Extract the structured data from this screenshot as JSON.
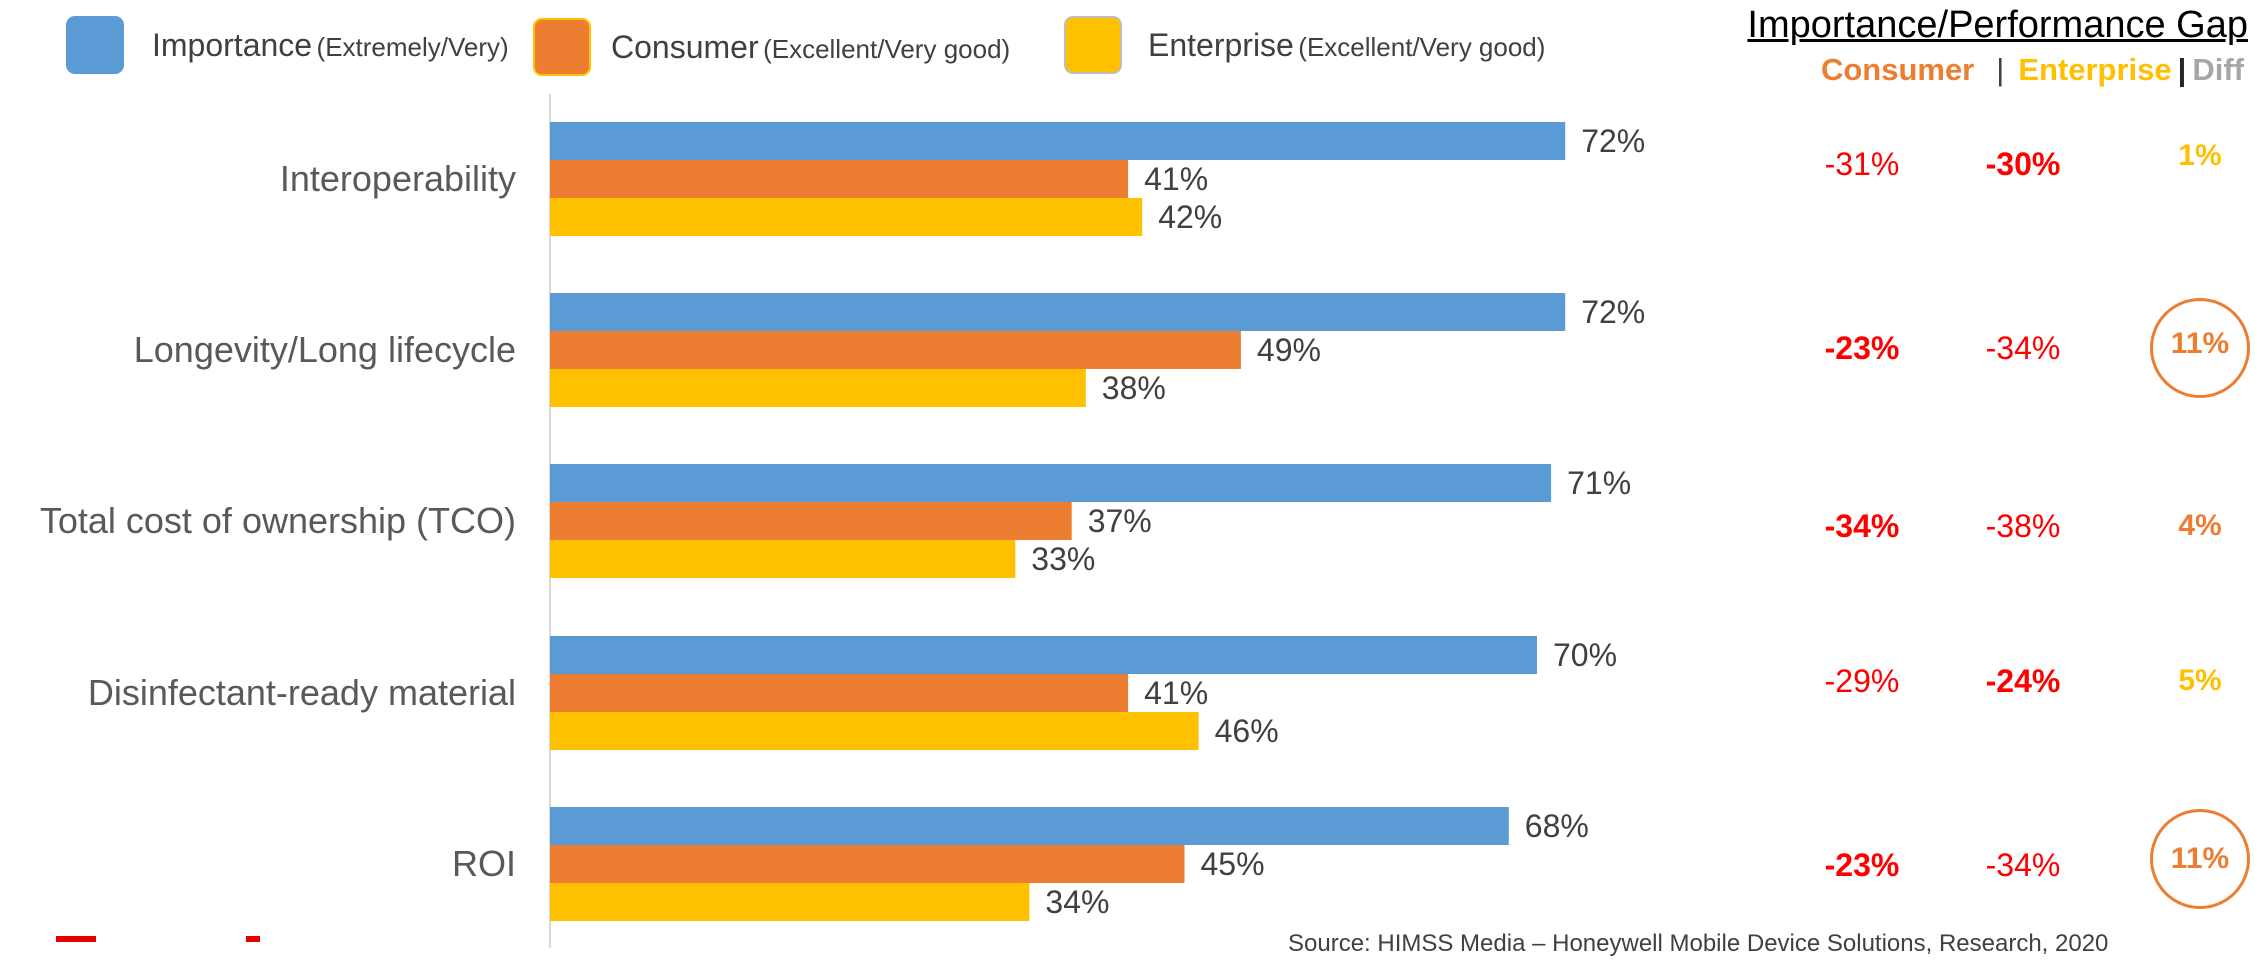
{
  "legend": {
    "importance": {
      "main": "Importance",
      "sub": "(Extremely/Very)"
    },
    "consumer": {
      "main": "Consumer",
      "sub": "(Excellent/Very good)"
    },
    "enterprise": {
      "main": "Enterprise",
      "sub": "(Excellent/Very good)"
    }
  },
  "colors": {
    "importance": "#5B9BD5",
    "consumer": "#ED7D31",
    "enterprise": "#FFC000",
    "gap_negative": "#FF0000",
    "axis": "#D9D9D9"
  },
  "gap_panel": {
    "title": "Importance/Performance Gap",
    "consumer_label": "Consumer",
    "separator_thin": "|",
    "enterprise_label": "Enterprise",
    "separator_thick": "|",
    "diff_label": "Diff",
    "rows": [
      {
        "consumer": "-31%",
        "consumer_bold": false,
        "enterprise": "-30%",
        "enterprise_bold": true,
        "diff": "1%",
        "diff_color": "#FFC000",
        "circled": false
      },
      {
        "consumer": "-23%",
        "consumer_bold": true,
        "enterprise": "-34%",
        "enterprise_bold": false,
        "diff": "11%",
        "diff_color": "#ED7D31",
        "circled": true
      },
      {
        "consumer": "-34%",
        "consumer_bold": true,
        "enterprise": "-38%",
        "enterprise_bold": false,
        "diff": "4%",
        "diff_color": "#ED7D31",
        "circled": false
      },
      {
        "consumer": "-29%",
        "consumer_bold": false,
        "enterprise": "-24%",
        "enterprise_bold": true,
        "diff": "5%",
        "diff_color": "#FFC000",
        "circled": false
      },
      {
        "consumer": "-23%",
        "consumer_bold": true,
        "enterprise": "-34%",
        "enterprise_bold": false,
        "diff": "11%",
        "diff_color": "#ED7D31",
        "circled": true
      }
    ]
  },
  "source": "Source: HIMSS Media – Honeywell Mobile Device Solutions, Research, 2020",
  "chart_data": {
    "type": "bar",
    "orientation": "horizontal",
    "categories": [
      "Interoperability",
      "Longevity/Long lifecycle",
      "Total cost of ownership (TCO)",
      "Disinfectant-ready material",
      "ROI"
    ],
    "series": [
      {
        "name": "Importance (Extremely/Very)",
        "values": [
          72,
          72,
          71,
          70,
          68
        ],
        "labels": [
          "72%",
          "72%",
          "71%",
          "70%",
          "68%"
        ]
      },
      {
        "name": "Consumer (Excellent/Very good)",
        "values": [
          41,
          49,
          37,
          41,
          45
        ],
        "labels": [
          "41%",
          "49%",
          "37%",
          "41%",
          "45%"
        ]
      },
      {
        "name": "Enterprise (Excellent/Very good)",
        "values": [
          42,
          38,
          33,
          46,
          34
        ],
        "labels": [
          "42%",
          "38%",
          "33%",
          "46%",
          "34%"
        ]
      }
    ],
    "xlim": [
      0,
      100
    ],
    "grid": false,
    "legend_position": "top-left"
  }
}
